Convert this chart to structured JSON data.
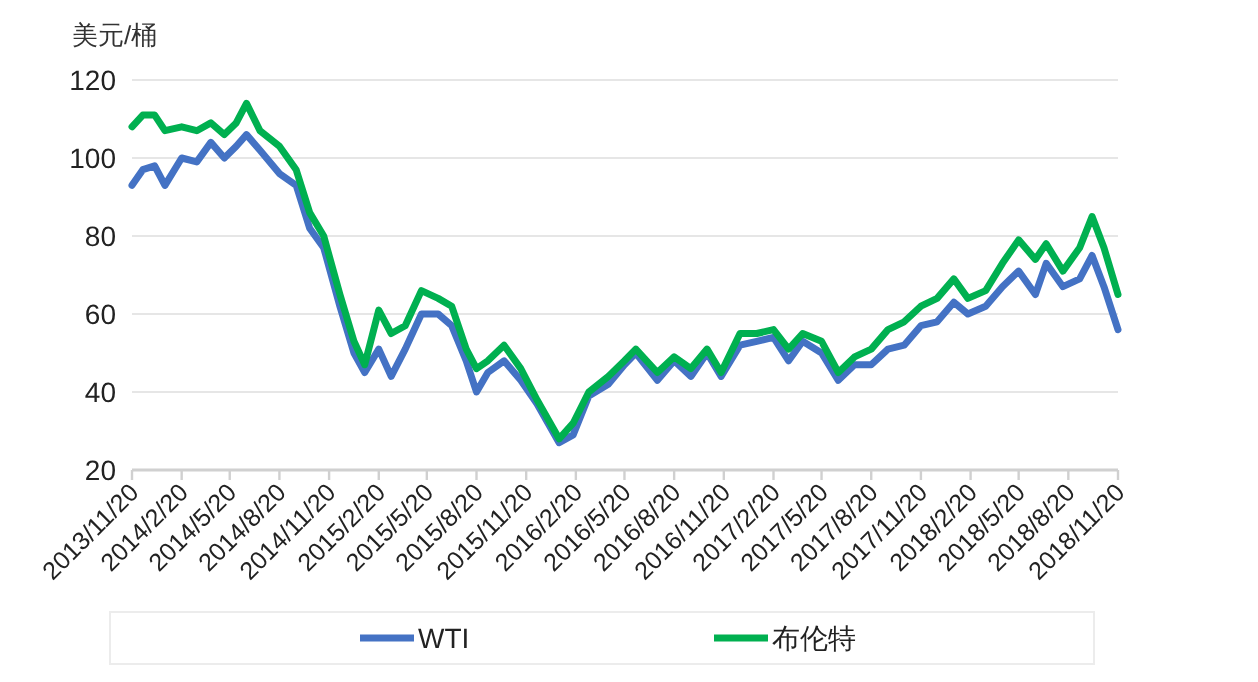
{
  "chart_data": {
    "type": "line",
    "ylabel": "美元/桶",
    "x": [
      "2013-11-20",
      "2013-12-10",
      "2014-01-01",
      "2014-01-20",
      "2014-02-20",
      "2014-03-20",
      "2014-04-15",
      "2014-05-10",
      "2014-06-01",
      "2014-06-20",
      "2014-07-15",
      "2014-08-20",
      "2014-09-20",
      "2014-10-15",
      "2014-11-10",
      "2014-12-10",
      "2015-01-05",
      "2015-01-25",
      "2015-02-20",
      "2015-03-15",
      "2015-04-10",
      "2015-05-10",
      "2015-06-10",
      "2015-07-05",
      "2015-08-01",
      "2015-08-20",
      "2015-09-10",
      "2015-10-10",
      "2015-11-10",
      "2015-12-10",
      "2016-01-20",
      "2016-02-15",
      "2016-03-15",
      "2016-04-20",
      "2016-05-20",
      "2016-06-10",
      "2016-07-20",
      "2016-08-20",
      "2016-09-20",
      "2016-10-20",
      "2016-11-15",
      "2016-12-20",
      "2017-01-20",
      "2017-02-20",
      "2017-03-20",
      "2017-04-15",
      "2017-05-20",
      "2017-06-20",
      "2017-07-20",
      "2017-08-20",
      "2017-09-20",
      "2017-10-20",
      "2017-11-20",
      "2017-12-20",
      "2018-01-20",
      "2018-02-15",
      "2018-03-20",
      "2018-04-20",
      "2018-05-20",
      "2018-06-20",
      "2018-07-10",
      "2018-08-10",
      "2018-09-10",
      "2018-10-03",
      "2018-10-25",
      "2018-11-20"
    ],
    "series": [
      {
        "name": "WTI",
        "color": "#4472c4",
        "values": [
          93,
          97,
          98,
          93,
          100,
          99,
          104,
          100,
          103,
          106,
          102,
          96,
          93,
          82,
          77,
          62,
          50,
          45,
          51,
          44,
          51,
          60,
          60,
          57,
          48,
          40,
          45,
          48,
          43,
          37,
          27,
          29,
          39,
          42,
          47,
          50,
          43,
          48,
          44,
          50,
          44,
          52,
          53,
          54,
          48,
          53,
          50,
          43,
          47,
          47,
          51,
          52,
          57,
          58,
          63,
          60,
          62,
          67,
          71,
          65,
          73,
          67,
          69,
          75,
          67,
          56
        ]
      },
      {
        "name": "布伦特",
        "color": "#00b050",
        "values": [
          108,
          111,
          111,
          107,
          108,
          107,
          109,
          106,
          109,
          114,
          107,
          103,
          97,
          86,
          80,
          65,
          53,
          47,
          61,
          55,
          57,
          66,
          64,
          62,
          51,
          46,
          48,
          52,
          46,
          38,
          28,
          32,
          40,
          44,
          48,
          51,
          45,
          49,
          46,
          51,
          45,
          55,
          55,
          56,
          51,
          55,
          53,
          45,
          49,
          51,
          56,
          58,
          62,
          64,
          69,
          64,
          66,
          73,
          79,
          74,
          78,
          71,
          77,
          85,
          77,
          65
        ]
      }
    ],
    "xlim": [
      "2013-11-20",
      "2018-11-20"
    ],
    "xticks": [
      {
        "value": "2013-11-20",
        "label": "2013/11/20"
      },
      {
        "value": "2014-02-20",
        "label": "2014/2/20"
      },
      {
        "value": "2014-05-20",
        "label": "2014/5/20"
      },
      {
        "value": "2014-08-20",
        "label": "2014/8/20"
      },
      {
        "value": "2014-11-20",
        "label": "2014/11/20"
      },
      {
        "value": "2015-02-20",
        "label": "2015/2/20"
      },
      {
        "value": "2015-05-20",
        "label": "2015/5/20"
      },
      {
        "value": "2015-08-20",
        "label": "2015/8/20"
      },
      {
        "value": "2015-11-20",
        "label": "2015/11/20"
      },
      {
        "value": "2016-02-20",
        "label": "2016/2/20"
      },
      {
        "value": "2016-05-20",
        "label": "2016/5/20"
      },
      {
        "value": "2016-08-20",
        "label": "2016/8/20"
      },
      {
        "value": "2016-11-20",
        "label": "2016/11/20"
      },
      {
        "value": "2017-02-20",
        "label": "2017/2/20"
      },
      {
        "value": "2017-05-20",
        "label": "2017/5/20"
      },
      {
        "value": "2017-08-20",
        "label": "2017/8/20"
      },
      {
        "value": "2017-11-20",
        "label": "2017/11/20"
      },
      {
        "value": "2018-02-20",
        "label": "2018/2/20"
      },
      {
        "value": "2018-05-20",
        "label": "2018/5/20"
      },
      {
        "value": "2018-08-20",
        "label": "2018/8/20"
      },
      {
        "value": "2018-11-20",
        "label": "2018/11/20"
      }
    ],
    "ylim": [
      20,
      120
    ],
    "yticks": [
      20,
      40,
      60,
      80,
      100,
      120
    ],
    "grid": "y",
    "legend": "bottom",
    "marker": "none",
    "line_style": "solid"
  }
}
